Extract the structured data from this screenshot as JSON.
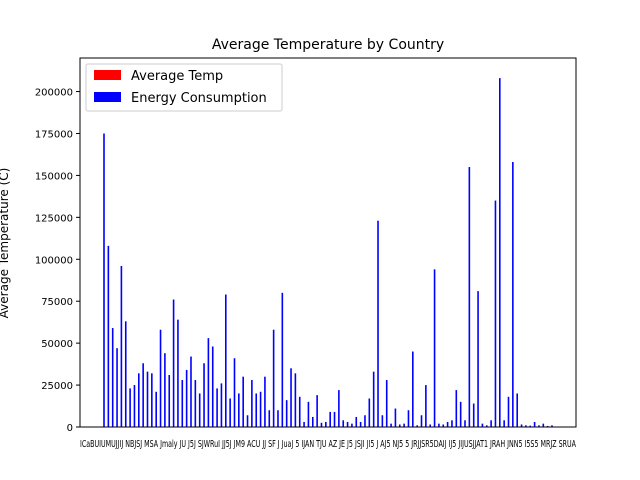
{
  "chart_data": {
    "type": "bar",
    "title": "Average Temperature by Country",
    "xlabel": "",
    "ylabel": "Average Temperature (C)",
    "ylim": [
      0,
      220000
    ],
    "yticks": [
      0,
      25000,
      50000,
      75000,
      100000,
      125000,
      150000,
      175000,
      200000
    ],
    "ytick_labels": [
      "0",
      "25000",
      "50000",
      "75000",
      "100000",
      "125000",
      "150000",
      "175000",
      "200000"
    ],
    "x_tick_text": "ICaBUIUMUJJIJ NBJSJ MSA Jmaly JU J5J SJWRuI JJ5J JM9 ACU JJ SF J JuaJ 5 IJAN TJU AZ JE J5 JSJI JI5 J AJ5 NJ5 5 JRJJSR5DAIJ IJ5 JIJUSJJAT1 JRAH JNN5 I5S5 MRJZ SRUA",
    "grid": false,
    "legend_position": "upper left",
    "colors": {
      "temp": "#ff0000",
      "energy": "#0000ff"
    },
    "series": [
      {
        "name": "Average Temp",
        "color": "#ff0000",
        "values": [
          15,
          22,
          18,
          25,
          10,
          12,
          20,
          16,
          24,
          19,
          21,
          14,
          17,
          23,
          11,
          13,
          26,
          9,
          18,
          20,
          15,
          22,
          12,
          16,
          19,
          21,
          25,
          14,
          17,
          10,
          23,
          18,
          13,
          20,
          24,
          11,
          16,
          22,
          19,
          15,
          21,
          12,
          18,
          25,
          14,
          17,
          20,
          13,
          23,
          16,
          19,
          11,
          22,
          15,
          18,
          24,
          12,
          20,
          17,
          14,
          21,
          16,
          19,
          13,
          25,
          18,
          22,
          10,
          15,
          20,
          17,
          23,
          14,
          19,
          12,
          21,
          16,
          18,
          24,
          13,
          20,
          15,
          22,
          17,
          11,
          19,
          14,
          23,
          18,
          16,
          21,
          12,
          25,
          15,
          20,
          17,
          13,
          22,
          19,
          14,
          18,
          16,
          21,
          15
        ]
      },
      {
        "name": "Energy Consumption",
        "color": "#0000ff",
        "values": [
          175000,
          108000,
          59000,
          47000,
          96000,
          63000,
          23000,
          25000,
          32000,
          38000,
          33000,
          32000,
          21000,
          58000,
          44000,
          31000,
          76000,
          64000,
          28000,
          34000,
          42000,
          28000,
          20000,
          38000,
          53000,
          48000,
          23000,
          26000,
          79000,
          17000,
          41000,
          20000,
          30000,
          7000,
          28000,
          20000,
          21000,
          30000,
          10000,
          58000,
          10000,
          80000,
          16000,
          35000,
          32000,
          18000,
          3000,
          15000,
          6000,
          19000,
          2500,
          3000,
          9000,
          9000,
          22000,
          4000,
          3000,
          2000,
          6000,
          3000,
          7000,
          17000,
          33000,
          123000,
          7000,
          28000,
          2000,
          11000,
          1500,
          2000,
          10000,
          45000,
          1000,
          7000,
          25000,
          1500,
          94000,
          2000,
          1500,
          3000,
          4000,
          22000,
          15000,
          4000,
          155000,
          14000,
          81000,
          2000,
          1000,
          4000,
          135000,
          208000,
          4000,
          18000,
          158000,
          20000,
          1500,
          1000,
          800,
          3000,
          1000,
          2000,
          600,
          1000
        ]
      }
    ]
  }
}
